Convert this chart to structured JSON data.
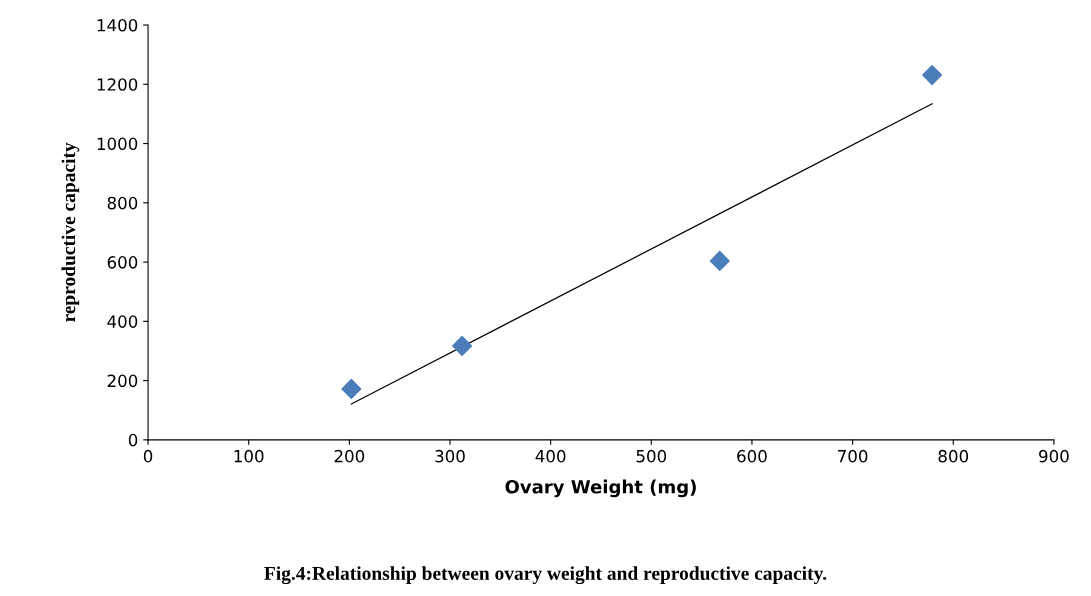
{
  "chart_data": {
    "type": "scatter",
    "xlabel": "Ovary Weight (mg)",
    "ylabel": "reproductive capacity",
    "x": [
      202,
      312,
      568,
      779
    ],
    "series": [
      {
        "type": "scatter",
        "color": "#4a7ebb",
        "marker": "diamond",
        "values": [
          172,
          317,
          604,
          1231
        ]
      },
      {
        "type": "line",
        "color": "#000000",
        "x": [
          202,
          779
        ],
        "values": [
          121,
          1134
        ],
        "marker": "none",
        "line_style": "solid"
      }
    ],
    "xlim": [
      0,
      900
    ],
    "xticks": [
      0,
      100,
      200,
      300,
      400,
      500,
      600,
      700,
      800,
      900
    ],
    "ylim": [
      0,
      1400
    ],
    "yticks": [
      0,
      200,
      400,
      600,
      800,
      1000,
      1200,
      1400
    ],
    "grid": false,
    "legend": false,
    "annotations": [
      "Fig.4:Relationship between ovary weight and reproductive capacity."
    ]
  }
}
